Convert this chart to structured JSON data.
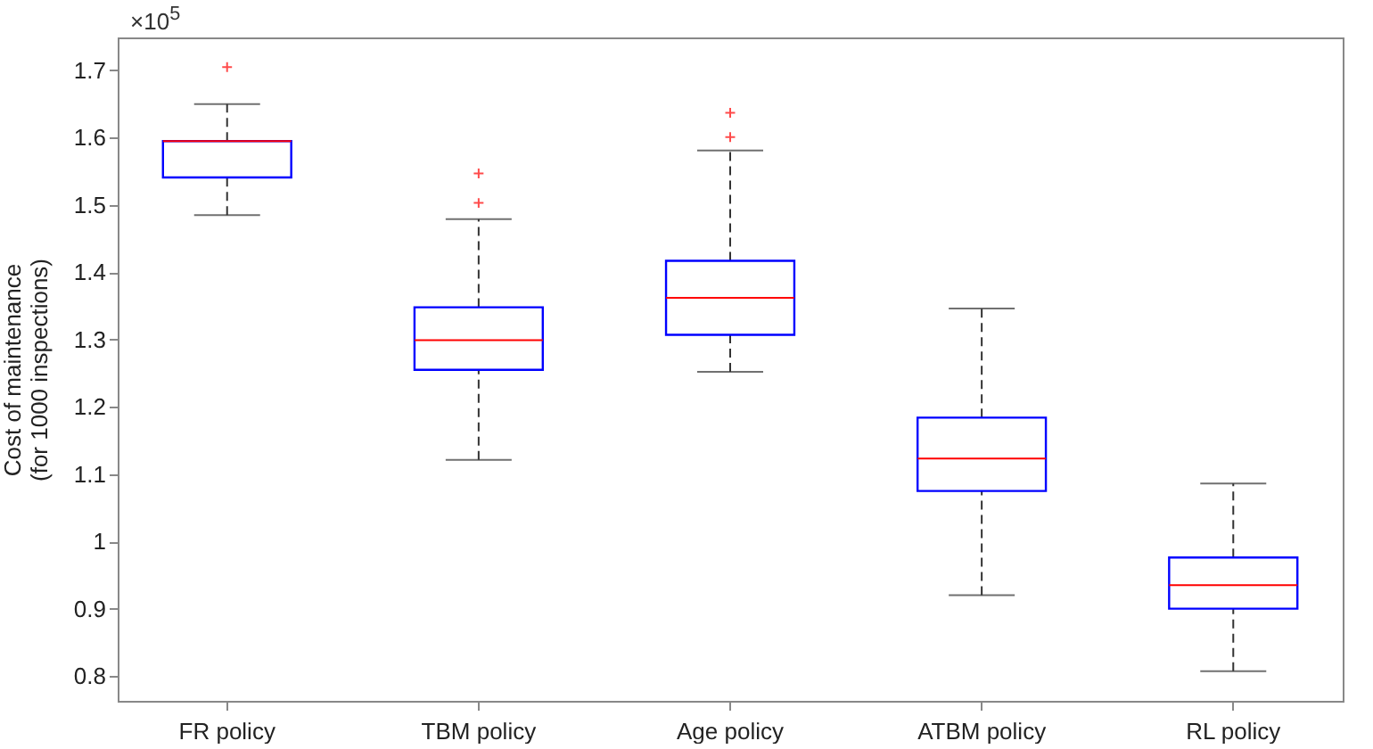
{
  "chart_data": {
    "type": "box",
    "ylabel": "Cost of maintenance\n(for 1000 inspections)",
    "annotations": [
      "×10$^{5}$"
    ],
    "categories": [
      "FR policy",
      "TBM policy",
      "Age policy",
      "ATBM policy",
      "RL policy"
    ],
    "series": [
      {
        "color": "#0000ff",
        "boxes": [
          {
            "low": 1.485,
            "q1": 1.541,
            "median": 1.595,
            "q3": 1.595,
            "high": 1.65,
            "outliers": [
              1.705
            ]
          },
          {
            "low": 1.121,
            "q1": 1.255,
            "median": 1.299,
            "q3": 1.348,
            "high": 1.479,
            "outliers": [
              1.503,
              1.547
            ]
          },
          {
            "low": 1.252,
            "q1": 1.307,
            "median": 1.362,
            "q3": 1.417,
            "high": 1.581,
            "outliers": [
              1.601,
              1.637
            ]
          },
          {
            "low": 0.92,
            "q1": 1.075,
            "median": 1.123,
            "q3": 1.184,
            "high": 1.346
          },
          {
            "low": 0.807,
            "q1": 0.9,
            "median": 0.935,
            "q3": 0.976,
            "high": 1.086
          }
        ]
      }
    ],
    "ylim": [
      0.763,
      1.749
    ],
    "yticks": [
      0.8,
      0.9,
      1,
      1.1,
      1.2,
      1.3,
      1.4,
      1.5,
      1.6,
      1.7
    ],
    "marker": "cross",
    "grid": false
  }
}
